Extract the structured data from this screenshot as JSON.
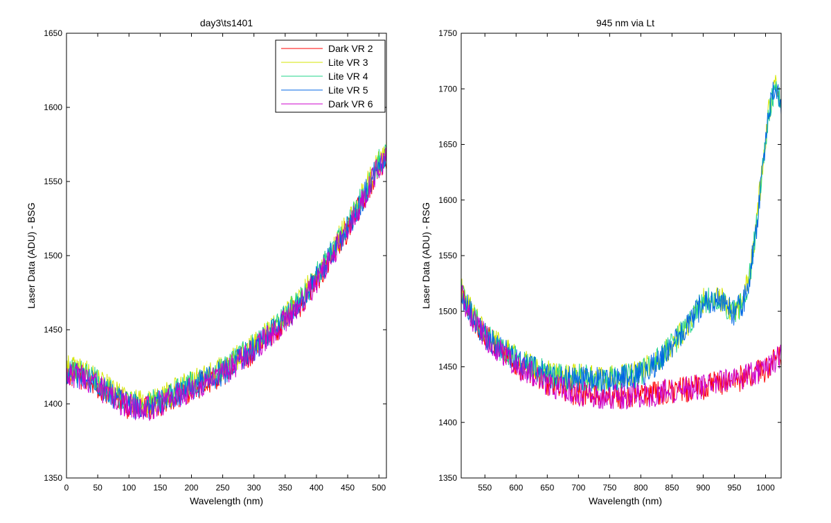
{
  "chart_data": [
    {
      "type": "line",
      "title": "day3\\ts1401",
      "xlabel": "Wavelength (nm)",
      "ylabel": "Laser Data (ADU) - BSG",
      "xlim": [
        0,
        512
      ],
      "ylim": [
        1350,
        1650
      ],
      "xticks": [
        0,
        50,
        100,
        150,
        200,
        250,
        300,
        350,
        400,
        450,
        500
      ],
      "yticks": [
        1350,
        1400,
        1450,
        1500,
        1550,
        1600,
        1650
      ],
      "grid": false,
      "legend_position": "top-right",
      "series": [
        {
          "name": "Dark VR 2",
          "color": "#ff0000",
          "x": [
            0,
            25,
            50,
            75,
            100,
            125,
            150,
            175,
            200,
            225,
            250,
            275,
            300,
            325,
            350,
            375,
            400,
            425,
            450,
            475,
            500,
            512
          ],
          "values": [
            1420,
            1418,
            1412,
            1404,
            1398,
            1396,
            1400,
            1405,
            1410,
            1415,
            1420,
            1428,
            1436,
            1446,
            1456,
            1468,
            1483,
            1500,
            1518,
            1538,
            1560,
            1565
          ]
        },
        {
          "name": "Lite VR 3",
          "color": "#d4e600",
          "x": [
            0,
            25,
            50,
            75,
            100,
            125,
            150,
            175,
            200,
            225,
            250,
            275,
            300,
            325,
            350,
            375,
            400,
            425,
            450,
            475,
            500,
            512
          ],
          "values": [
            1424,
            1422,
            1416,
            1408,
            1402,
            1400,
            1404,
            1409,
            1414,
            1419,
            1424,
            1432,
            1440,
            1450,
            1460,
            1472,
            1487,
            1504,
            1522,
            1542,
            1564,
            1570
          ]
        },
        {
          "name": "Lite VR 4",
          "color": "#22d48a",
          "x": [
            0,
            25,
            50,
            75,
            100,
            125,
            150,
            175,
            200,
            225,
            250,
            275,
            300,
            325,
            350,
            375,
            400,
            425,
            450,
            475,
            500,
            512
          ],
          "values": [
            1423,
            1421,
            1415,
            1407,
            1401,
            1399,
            1403,
            1408,
            1413,
            1418,
            1423,
            1431,
            1439,
            1449,
            1459,
            1471,
            1486,
            1503,
            1521,
            1541,
            1563,
            1569
          ]
        },
        {
          "name": "Lite VR 5",
          "color": "#0066e6",
          "x": [
            0,
            25,
            50,
            75,
            100,
            125,
            150,
            175,
            200,
            225,
            250,
            275,
            300,
            325,
            350,
            375,
            400,
            425,
            450,
            475,
            500,
            512
          ],
          "values": [
            1421,
            1419,
            1413,
            1405,
            1399,
            1397,
            1401,
            1406,
            1411,
            1416,
            1421,
            1429,
            1437,
            1447,
            1457,
            1469,
            1484,
            1501,
            1519,
            1539,
            1561,
            1567
          ]
        },
        {
          "name": "Dark VR 6",
          "color": "#cc00cc",
          "x": [
            0,
            25,
            50,
            75,
            100,
            125,
            150,
            175,
            200,
            225,
            250,
            275,
            300,
            325,
            350,
            375,
            400,
            425,
            450,
            475,
            500,
            512
          ],
          "values": [
            1420,
            1418,
            1412,
            1404,
            1398,
            1396,
            1400,
            1405,
            1410,
            1415,
            1420,
            1428,
            1436,
            1446,
            1456,
            1468,
            1483,
            1500,
            1518,
            1538,
            1560,
            1565
          ]
        }
      ]
    },
    {
      "type": "line",
      "title": "945 nm via Lt",
      "xlabel": "Wavelength (nm)",
      "ylabel": "Laser Data (ADU) - RSG",
      "xlim": [
        512,
        1025
      ],
      "ylim": [
        1350,
        1750
      ],
      "xticks": [
        550,
        600,
        650,
        700,
        750,
        800,
        850,
        900,
        950,
        1000
      ],
      "yticks": [
        1350,
        1400,
        1450,
        1500,
        1550,
        1600,
        1650,
        1700,
        1750
      ],
      "grid": false,
      "series": [
        {
          "color": "#ff0000",
          "x": [
            512,
            530,
            550,
            575,
            600,
            625,
            650,
            675,
            700,
            725,
            750,
            775,
            800,
            825,
            850,
            875,
            900,
            925,
            950,
            975,
            1000,
            1025
          ],
          "values": [
            1515,
            1495,
            1478,
            1465,
            1452,
            1444,
            1436,
            1430,
            1426,
            1424,
            1423,
            1424,
            1425,
            1426,
            1428,
            1430,
            1432,
            1435,
            1438,
            1442,
            1448,
            1460
          ]
        },
        {
          "color": "#d4e600",
          "x": [
            512,
            530,
            550,
            575,
            600,
            625,
            650,
            675,
            700,
            725,
            750,
            775,
            800,
            825,
            850,
            875,
            900,
            925,
            950,
            965,
            975,
            985,
            995,
            1005,
            1015,
            1025
          ],
          "values": [
            1520,
            1497,
            1480,
            1468,
            1458,
            1450,
            1445,
            1441,
            1442,
            1440,
            1440,
            1442,
            1445,
            1455,
            1470,
            1488,
            1510,
            1512,
            1500,
            1510,
            1535,
            1575,
            1630,
            1680,
            1705,
            1690
          ]
        },
        {
          "color": "#22d48a",
          "x": [
            512,
            530,
            550,
            575,
            600,
            625,
            650,
            675,
            700,
            725,
            750,
            775,
            800,
            825,
            850,
            875,
            900,
            925,
            950,
            965,
            975,
            985,
            995,
            1005,
            1015,
            1025
          ],
          "values": [
            1518,
            1496,
            1479,
            1467,
            1457,
            1449,
            1444,
            1440,
            1441,
            1439,
            1439,
            1441,
            1444,
            1454,
            1469,
            1487,
            1509,
            1511,
            1499,
            1509,
            1534,
            1574,
            1629,
            1679,
            1703,
            1688
          ]
        },
        {
          "color": "#0066e6",
          "x": [
            512,
            530,
            550,
            575,
            600,
            625,
            650,
            675,
            700,
            725,
            750,
            775,
            800,
            825,
            850,
            875,
            900,
            925,
            950,
            965,
            975,
            985,
            995,
            1005,
            1015,
            1025
          ],
          "values": [
            1516,
            1495,
            1478,
            1466,
            1456,
            1448,
            1443,
            1439,
            1440,
            1438,
            1438,
            1440,
            1443,
            1453,
            1468,
            1486,
            1508,
            1510,
            1498,
            1508,
            1533,
            1573,
            1628,
            1678,
            1702,
            1687
          ]
        },
        {
          "color": "#cc00cc",
          "x": [
            512,
            530,
            550,
            575,
            600,
            625,
            650,
            675,
            700,
            725,
            750,
            775,
            800,
            825,
            850,
            875,
            900,
            925,
            950,
            975,
            1000,
            1025
          ],
          "values": [
            1514,
            1494,
            1477,
            1464,
            1451,
            1443,
            1435,
            1430,
            1426,
            1424,
            1423,
            1424,
            1425,
            1426,
            1428,
            1430,
            1432,
            1435,
            1438,
            1442,
            1448,
            1460
          ]
        }
      ]
    }
  ]
}
